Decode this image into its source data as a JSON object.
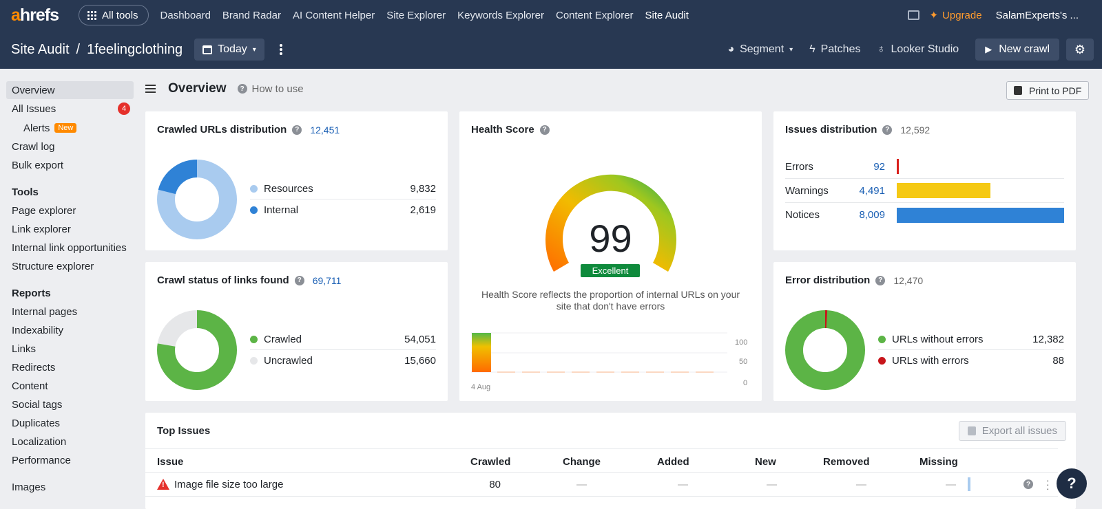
{
  "topbar": {
    "logo": "ahrefs",
    "all_tools": "All tools",
    "nav": [
      "Dashboard",
      "Brand Radar",
      "AI Content Helper",
      "Site Explorer",
      "Keywords Explorer",
      "Content Explorer",
      "Site Audit"
    ],
    "active_nav": "Site Audit",
    "upgrade": "Upgrade",
    "account": "SalamExperts's ..."
  },
  "subbar": {
    "tool": "Site Audit",
    "separator": "/",
    "project": "1feelingclothing",
    "date": "Today",
    "segment": "Segment",
    "patches": "Patches",
    "looker": "Looker Studio",
    "new_crawl": "New crawl"
  },
  "sidebar": {
    "overview": "Overview",
    "all_issues": "All Issues",
    "all_issues_count": "4",
    "alerts": "Alerts",
    "alerts_tag": "New",
    "crawl_log": "Crawl log",
    "bulk_export": "Bulk export",
    "tools_head": "Tools",
    "page_explorer": "Page explorer",
    "link_explorer": "Link explorer",
    "internal_link_opps": "Internal link opportunities",
    "structure_explorer": "Structure explorer",
    "reports_head": "Reports",
    "internal_pages": "Internal pages",
    "indexability": "Indexability",
    "links": "Links",
    "redirects": "Redirects",
    "content": "Content",
    "social_tags": "Social tags",
    "duplicates": "Duplicates",
    "localization": "Localization",
    "performance": "Performance",
    "images": "Images"
  },
  "page": {
    "title": "Overview",
    "how_to_use": "How to use",
    "print_pdf": "Print to PDF"
  },
  "crawled_urls": {
    "title": "Crawled URLs distribution",
    "total": "12,451",
    "items": [
      {
        "label": "Resources",
        "value": "9,832",
        "color": "#a9cbef"
      },
      {
        "label": "Internal",
        "value": "2,619",
        "color": "#2f82d6"
      }
    ]
  },
  "crawl_status": {
    "title": "Crawl status of links found",
    "total": "69,711",
    "items": [
      {
        "label": "Crawled",
        "value": "54,051",
        "color": "#5cb446"
      },
      {
        "label": "Uncrawled",
        "value": "15,660",
        "color": "#e6e7e9"
      }
    ]
  },
  "health": {
    "title": "Health Score",
    "score": "99",
    "score_value": 99,
    "rating": "Excellent",
    "description": "Health Score reflects the proportion of internal URLs on your site that don't have errors",
    "chart_labels": {
      "top": "100",
      "mid": "50",
      "bottom": "0",
      "date": "4 Aug"
    }
  },
  "issues_dist": {
    "title": "Issues distribution",
    "total": "12,592",
    "items": [
      {
        "label": "Errors",
        "value": "92",
        "num": 92,
        "color": "#d9201c"
      },
      {
        "label": "Warnings",
        "value": "4,491",
        "num": 4491,
        "color": "#f5c914"
      },
      {
        "label": "Notices",
        "value": "8,009",
        "num": 8009,
        "color": "#2f82d6"
      }
    ]
  },
  "error_dist": {
    "title": "Error distribution",
    "total": "12,470",
    "items": [
      {
        "label": "URLs without errors",
        "value": "12,382",
        "color": "#5cb446"
      },
      {
        "label": "URLs with errors",
        "value": "88",
        "color": "#c8151b"
      }
    ]
  },
  "top_issues": {
    "title": "Top Issues",
    "export": "Export all issues",
    "columns": [
      "Issue",
      "Crawled",
      "Change",
      "Added",
      "New",
      "Removed",
      "Missing"
    ],
    "rows": [
      {
        "issue": "Image file size too large",
        "crawled": "80",
        "change": "—",
        "added": "—",
        "new": "—",
        "removed": "—",
        "missing": "—"
      }
    ]
  },
  "help": "?"
}
